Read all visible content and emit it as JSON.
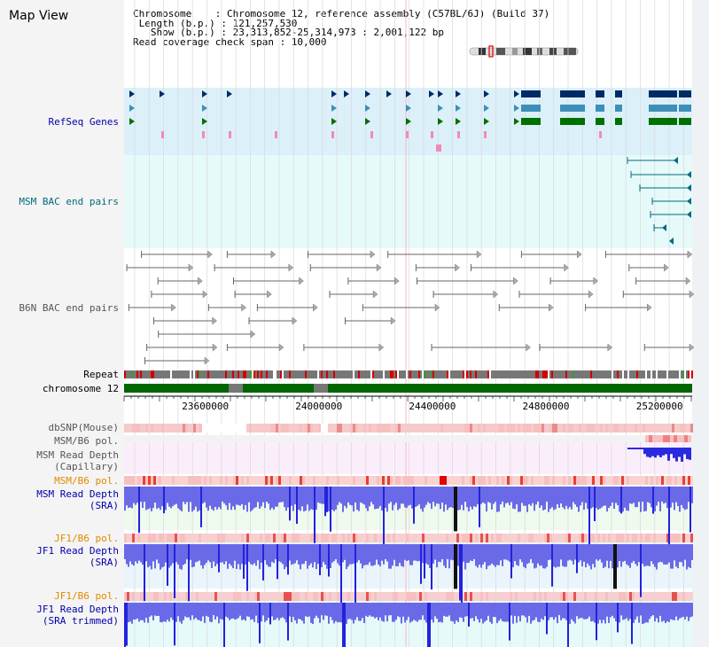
{
  "page": {
    "title": "Map View"
  },
  "header": {
    "line1": "Chromosome    : Chromosome 12, reference assembly (C57BL/6J) (Build 37)",
    "line2": " Length (b.p.) : 121,257,530",
    "line3": "   Show (b.p.) : 23,313,852-25,314,973 : 2,001,122 bp",
    "line4": "Read coverage check span : 10,000"
  },
  "tracks": {
    "refseq": "RefSeq Genes",
    "msm_bac": "MSM BAC end pairs",
    "b6n_bac": "B6N BAC end pairs",
    "repeat": "Repeat",
    "chromosome": "chromosome 12",
    "dbsnp": "dbSNP(Mouse)",
    "msm_b6_pol": "MSM/B6 pol.",
    "msm_read_depth_cap_1": "MSM Read Depth",
    "msm_read_depth_cap_2": "(Capillary)",
    "msm_b6_pol_2": "MSM/B6 pol.",
    "msm_read_depth_sra_1": "MSM Read Depth",
    "msm_read_depth_sra_2": "(SRA)",
    "jf1_b6_pol": "JF1/B6 pol.",
    "jf1_read_depth_sra_1": "JF1 Read Depth",
    "jf1_read_depth_sra_2": "(SRA)",
    "jf1_b6_pol_2": "JF1/B6 pol.",
    "jf1_read_depth_trim_1": "JF1 Read Depth",
    "jf1_read_depth_trim_2": "(SRA trimmed)"
  },
  "axis": {
    "ticks": [
      {
        "label": "23600000",
        "value": 23600000
      },
      {
        "label": "24000000",
        "value": 24000000
      },
      {
        "label": "24400000",
        "value": 24400000
      },
      {
        "label": "24800000",
        "value": 24800000
      },
      {
        "label": "25200000",
        "value": 25200000
      }
    ]
  },
  "colors": {
    "label_navy": "#0000aa",
    "label_teal": "#006a80",
    "label_orange": "#e08a00",
    "gene_dark": "#002a66",
    "gene_mid": "#3d8fb8",
    "gene_green": "#007000",
    "chrom_green": "#006600",
    "depth_blue": "#6a6ae8"
  }
}
